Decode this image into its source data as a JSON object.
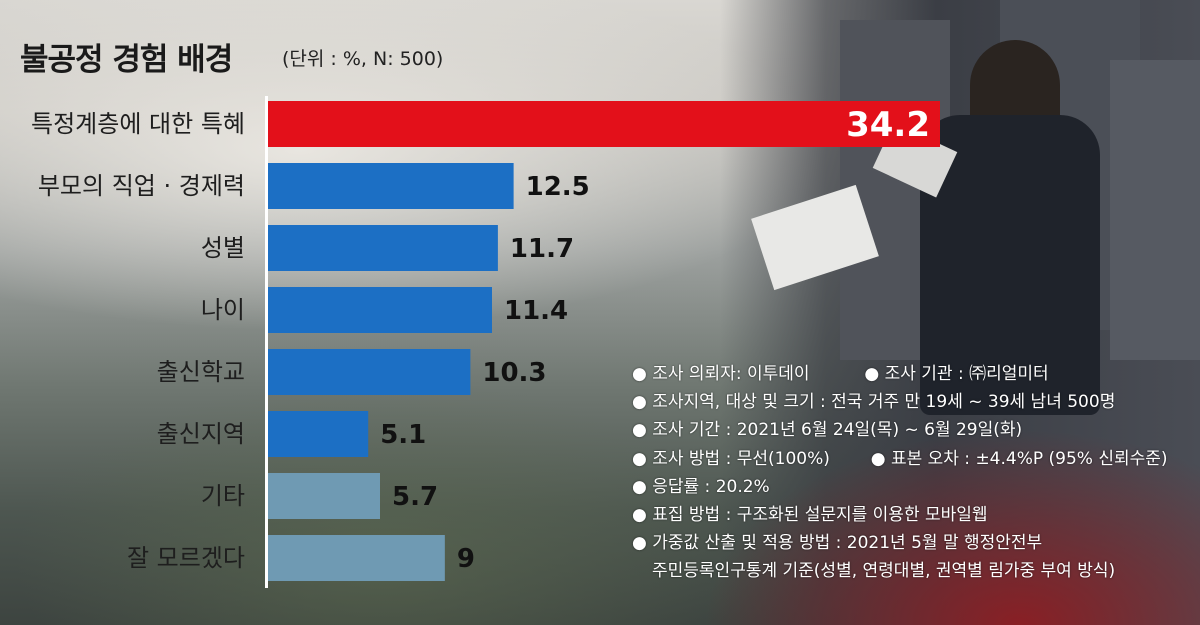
{
  "header": {
    "title": "불공정 경험 배경",
    "unit": "(단위 : %, N: 500)"
  },
  "chart_data": {
    "type": "bar",
    "orientation": "horizontal",
    "categories": [
      "특정계층에 대한 특혜",
      "부모의 직업 · 경제력",
      "성별",
      "나이",
      "출신학교",
      "출신지역",
      "기타",
      "잘 모르겠다"
    ],
    "values": [
      34.2,
      12.5,
      11.7,
      11.4,
      10.3,
      5.1,
      5.7,
      9
    ],
    "value_labels": [
      "34.2",
      "12.5",
      "11.7",
      "11.4",
      "10.3",
      "5.1",
      "5.7",
      "9"
    ],
    "colors": [
      "#e3101a",
      "#1c6fc4",
      "#1c6fc4",
      "#1c6fc4",
      "#1c6fc4",
      "#1c6fc4",
      "#6f9ab3",
      "#6f9ab3"
    ],
    "title": "불공정 경험 배경",
    "unit": "%",
    "xlim": [
      0,
      34.2
    ],
    "grid": false,
    "legend": "none"
  },
  "notes": {
    "line1a": "● 조사 의뢰자: 이투데이",
    "line1b": "● 조사 기관 : ㈜리얼미터",
    "line2": "● 조사지역, 대상 및 크기 : 전국 거주 만 19세 ~ 39세 남녀 500명",
    "line3": "● 조사 기간 : 2021년 6월 24일(목) ~ 6월 29일(화)",
    "line4a": "● 조사 방법 : 무선(100%)",
    "line4b": "● 표본 오차 : ±4.4%P (95% 신뢰수준)",
    "line5": "● 응답률 : 20.2%",
    "line6": "● 표집 방법 : 구조화된 설문지를 이용한 모바일웹",
    "line7": "● 가중값 산출 및 적용 방법 : 2021년 5월 말 행정안전부",
    "line8": "주민등록인구통계 기준(성별, 연령대별, 권역별 림가중 부여 방식)"
  }
}
